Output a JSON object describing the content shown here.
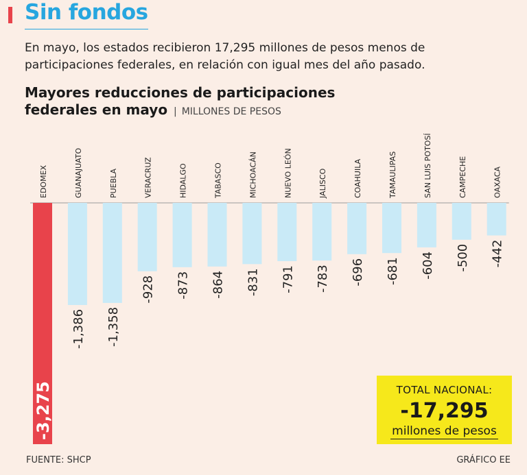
{
  "header": {
    "title": "Sin fondos",
    "subtitle": "En mayo, los estados recibieron 17,295 millones de pesos menos de participaciones federales, en relación con igual mes del año pasado."
  },
  "chart_data": {
    "type": "bar",
    "orientation": "vertical-downward",
    "title": "Mayores reducciones de participaciones federales en mayo",
    "units": "MILLONES DE PESOS",
    "categories": [
      "EDOMEX",
      "GUANAJUATO",
      "PUEBLA",
      "VERACRUZ",
      "HIDALGO",
      "TABASCO",
      "MICHOACÁN",
      "NUEVO LEÓN",
      "JALISCO",
      "COAHUILA",
      "TAMAULIPAS",
      "SAN LUIS POTOSÍ",
      "CAMPECHE",
      "OAXACA"
    ],
    "values": [
      -3275,
      -1386,
      -1358,
      -928,
      -873,
      -864,
      -831,
      -791,
      -783,
      -696,
      -681,
      -604,
      -500,
      -442
    ],
    "value_labels": [
      "-3,275",
      "-1,386",
      "-1,358",
      "-928",
      "-873",
      "-864",
      "-831",
      "-791",
      "-783",
      "-696",
      "-681",
      "-604",
      "-500",
      "-442"
    ],
    "highlight_index": 0,
    "ylim": [
      -3275,
      0
    ]
  },
  "total": {
    "label": "TOTAL NACIONAL:",
    "value": "-17,295",
    "unit": "millones de pesos"
  },
  "footer": {
    "source": "FUENTE: SHCP",
    "credit": "GRÁFICO EE"
  },
  "colors": {
    "highlight": "#e8434b",
    "bar": "#c9eaf7",
    "title": "#27a6df",
    "total_box": "#f6e81b",
    "background": "#fbeee6"
  }
}
